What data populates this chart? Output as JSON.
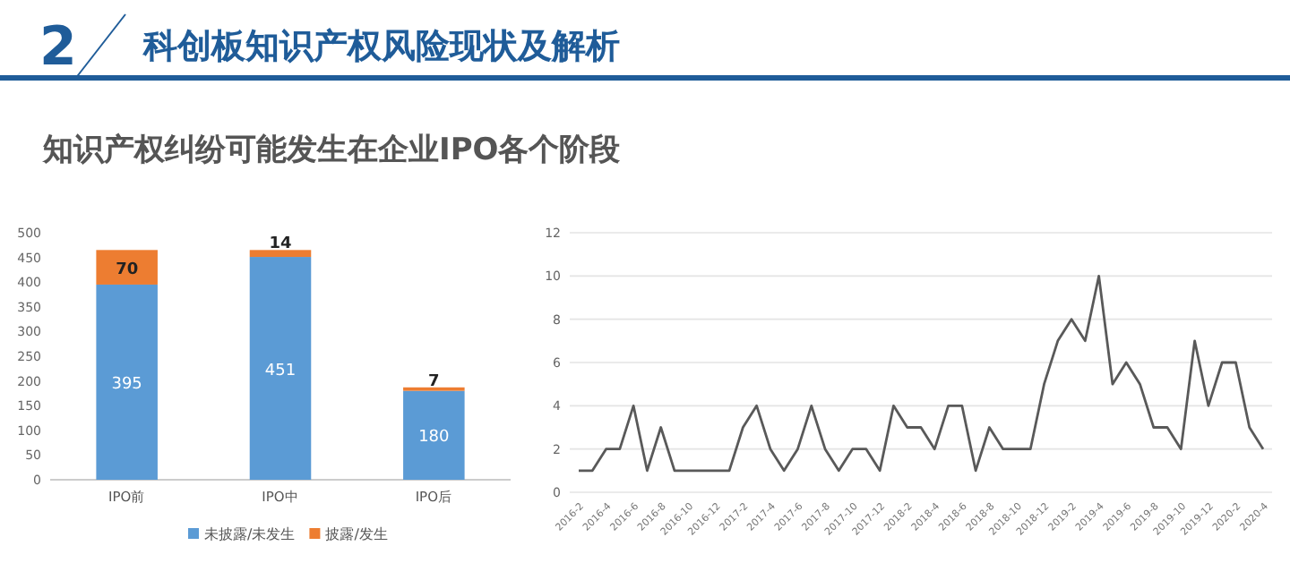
{
  "chart_data": [
    {
      "type": "bar",
      "title": "知识产权纠纷可能发生在企业IPO各个阶段",
      "annotations": [
        "2",
        "科创板知识产权风险现状及解析"
      ],
      "categories": [
        "IPO前",
        "IPO中",
        "IPO后"
      ],
      "stacked": true,
      "series": [
        {
          "name": "未披露/未发生",
          "color": "#5b9bd5",
          "values": [
            395,
            451,
            180
          ]
        },
        {
          "name": "披露/发生",
          "color": "#ed7d31",
          "values": [
            70,
            14,
            7
          ]
        }
      ],
      "ylim": [
        0,
        500
      ],
      "yticks": [
        0,
        50,
        100,
        150,
        200,
        250,
        300,
        350,
        400,
        450,
        500
      ],
      "data_labels": true,
      "legend": "bottom"
    },
    {
      "type": "line",
      "categories": [
        "2016-2",
        null,
        "2016-4",
        null,
        "2016-6",
        null,
        "2016-8",
        null,
        "2016-10",
        null,
        "2016-12",
        null,
        "2017-2",
        null,
        "2017-4",
        null,
        "2017-6",
        null,
        "2017-8",
        null,
        "2017-10",
        null,
        "2017-12",
        null,
        "2018-2",
        null,
        "2018-4",
        null,
        "2018-6",
        null,
        "2018-8",
        null,
        "2018-10",
        null,
        "2018-12",
        null,
        "2019-2",
        null,
        "2019-4",
        null,
        "2019-6",
        null,
        "2019-8",
        null,
        "2019-10",
        null,
        "2019-12",
        null,
        "2020-2",
        null,
        "2020-4"
      ],
      "values": [
        1,
        1,
        2,
        2,
        4,
        1,
        3,
        1,
        1,
        1,
        1,
        1,
        3,
        4,
        2,
        1,
        2,
        4,
        2,
        1,
        2,
        2,
        1,
        4,
        3,
        3,
        2,
        4,
        4,
        1,
        3,
        2,
        2,
        2,
        5,
        7,
        8,
        7,
        10,
        5,
        6,
        5,
        3,
        3,
        2,
        7,
        4,
        6,
        6,
        3,
        2
      ],
      "color": "#595959",
      "ylim": [
        0,
        12
      ],
      "yticks": [
        0,
        2,
        4,
        6,
        8,
        10,
        12
      ],
      "grid": "y",
      "marker": "none",
      "line_style": "solid"
    }
  ]
}
